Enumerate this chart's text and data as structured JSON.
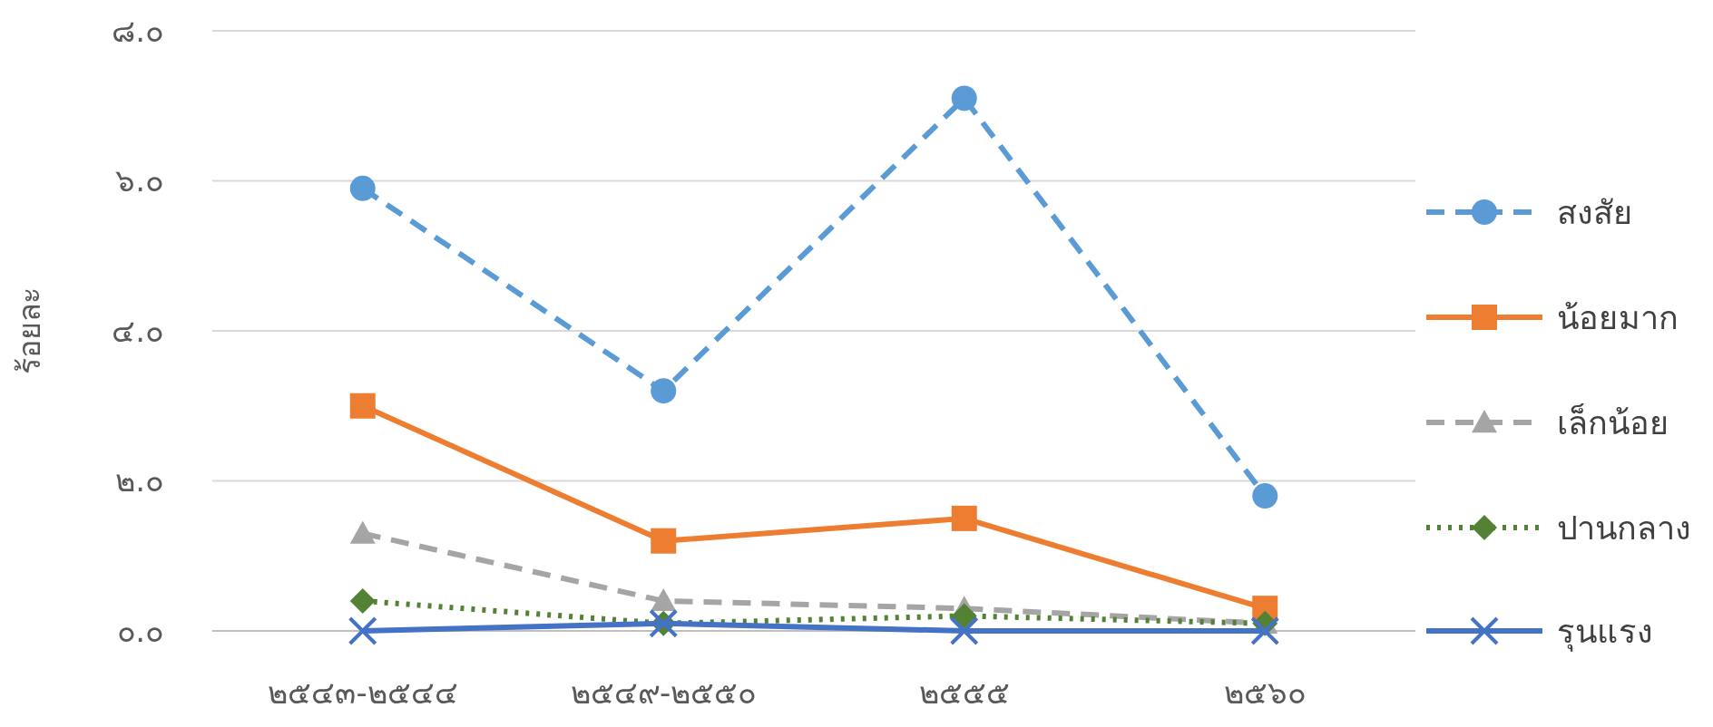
{
  "chart_data": {
    "type": "line",
    "ylabel": "ร้อยละ",
    "categories": [
      "๒๕๔๓-๒๕๔๔",
      "๒๕๔๙-๒๕๕๐",
      "๒๕๕๕",
      "๒๕๖๐"
    ],
    "ylim": [
      0,
      8
    ],
    "yticks": [
      {
        "value": 0,
        "label": "๐.๐"
      },
      {
        "value": 2,
        "label": "๒.๐"
      },
      {
        "value": 4,
        "label": "๔.๐"
      },
      {
        "value": 6,
        "label": "๖.๐"
      },
      {
        "value": 8,
        "label": "๘.๐"
      }
    ],
    "grid": "y",
    "legend": "right",
    "series": [
      {
        "name": "สงสัย",
        "color": "#5b9bd5",
        "marker": "circle",
        "line_style": "dashed",
        "values": [
          5.9,
          3.2,
          7.1,
          1.8
        ]
      },
      {
        "name": "น้อยมาก",
        "color": "#ed7d31",
        "marker": "square",
        "line_style": "solid",
        "values": [
          3.0,
          1.2,
          1.5,
          0.3
        ]
      },
      {
        "name": "เล็กน้อย",
        "color": "#a5a5a5",
        "marker": "triangle",
        "line_style": "dashed",
        "values": [
          1.3,
          0.4,
          0.3,
          0.1
        ]
      },
      {
        "name": "ปานกลาง",
        "color": "#548235",
        "marker": "diamond",
        "line_style": "dotted",
        "values": [
          0.4,
          0.1,
          0.2,
          0.1
        ]
      },
      {
        "name": "รุนแรง",
        "color": "#4472c4",
        "marker": "cross",
        "line_style": "solid",
        "values": [
          0,
          0.1,
          0,
          0
        ]
      }
    ]
  }
}
